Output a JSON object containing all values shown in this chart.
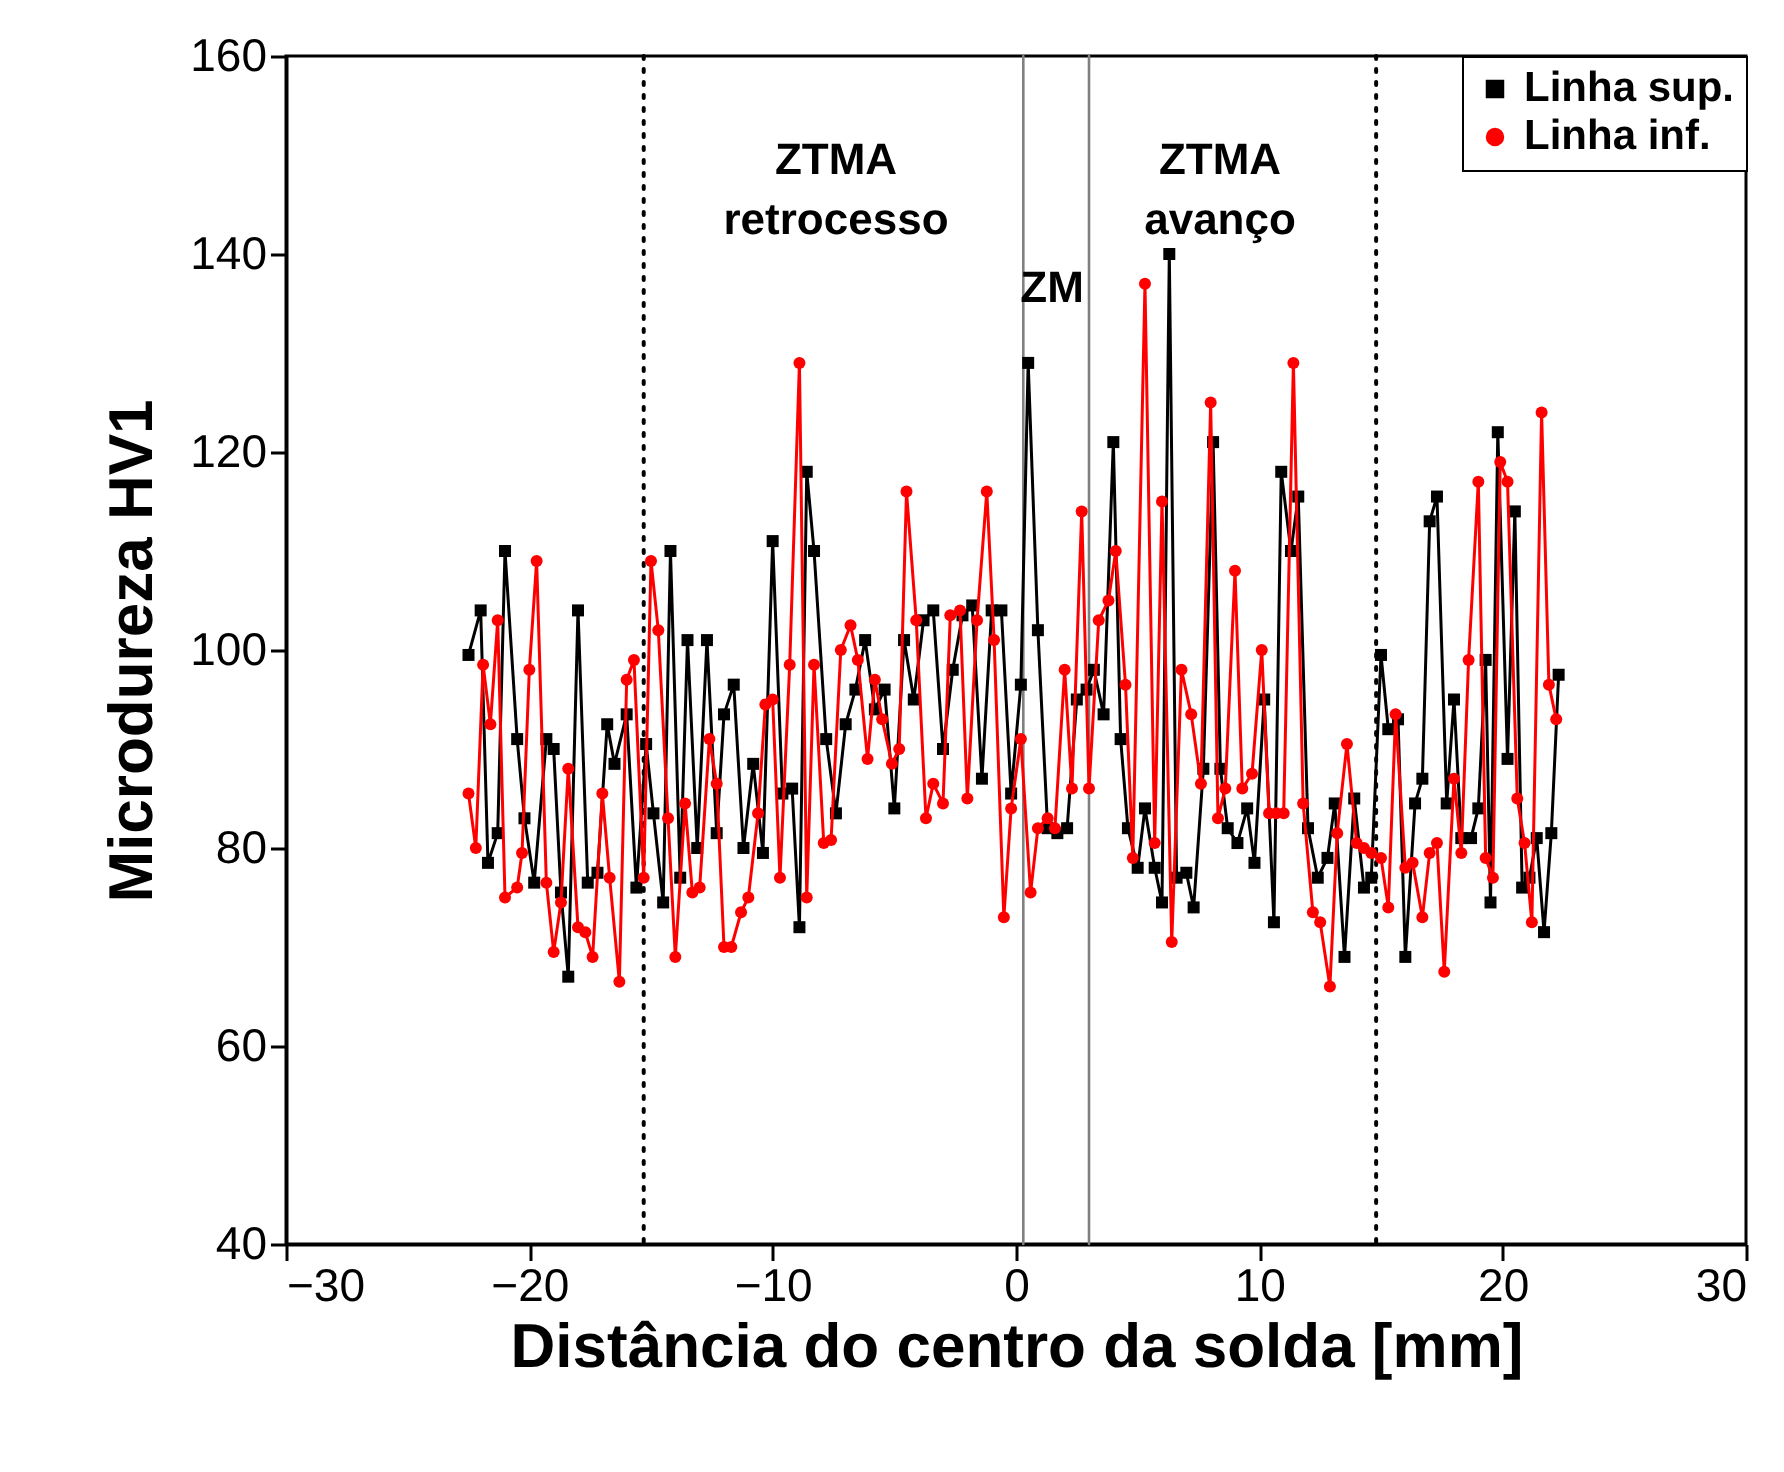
{
  "chart_data": {
    "type": "line",
    "xlabel": "Distância do centro da solda [mm]",
    "ylabel": "Microdureza HV1",
    "xlim": [
      -30,
      30
    ],
    "xticks": [
      -30,
      -20,
      -10,
      0,
      10,
      20,
      30
    ],
    "ylim": [
      40,
      160
    ],
    "yticks": [
      40,
      60,
      80,
      100,
      120,
      140,
      160
    ],
    "grid": false,
    "legend": "top right",
    "line_style": "solid",
    "ref_lines": [
      {
        "axis": "x",
        "value": -15.3,
        "line_style": "dotted",
        "color": "#000000"
      },
      {
        "axis": "x",
        "value": 14.8,
        "line_style": "dotted",
        "color": "#000000"
      },
      {
        "axis": "x",
        "value": 0.3,
        "line_style": "solid",
        "color": "#808080"
      },
      {
        "axis": "x",
        "value": 3.0,
        "line_style": "solid",
        "color": "#808080"
      }
    ],
    "annotations": [
      "ZTMA\nretrocesso",
      "ZM",
      "ZTMA\navanço"
    ],
    "series": [
      {
        "name": "Linha sup.",
        "color": "#000000",
        "marker": "square",
        "x": [
          -22.5,
          -22,
          -21.7,
          -21.3,
          -21,
          -20.5,
          -20.2,
          -19.8,
          -19.3,
          -19,
          -18.7,
          -18.4,
          -18,
          -17.6,
          -17.2,
          -16.8,
          -16.5,
          -16,
          -15.6,
          -15.2,
          -14.9,
          -14.5,
          -14.2,
          -13.8,
          -13.5,
          -13.1,
          -12.7,
          -12.3,
          -12,
          -11.6,
          -11.2,
          -10.8,
          -10.4,
          -10,
          -9.6,
          -9.2,
          -8.9,
          -8.6,
          -8.3,
          -7.8,
          -7.4,
          -7,
          -6.6,
          -6.2,
          -5.8,
          -5.4,
          -5,
          -4.6,
          -4.2,
          -3.8,
          -3.4,
          -3,
          -2.6,
          -2.2,
          -1.8,
          -1.4,
          -1,
          -0.6,
          -0.2,
          0.2,
          0.5,
          0.9,
          1.3,
          1.7,
          2.1,
          2.5,
          2.9,
          3.2,
          3.6,
          4,
          4.3,
          4.6,
          5,
          5.3,
          5.7,
          6,
          6.3,
          6.6,
          7,
          7.3,
          7.7,
          8.1,
          8.4,
          8.7,
          9.1,
          9.5,
          9.8,
          10.2,
          10.6,
          10.9,
          11.3,
          11.6,
          12,
          12.4,
          12.8,
          13.1,
          13.5,
          13.9,
          14.3,
          14.6,
          15,
          15.3,
          15.7,
          16,
          16.4,
          16.7,
          17,
          17.3,
          17.7,
          18,
          18.3,
          18.7,
          19,
          19.3,
          19.5,
          19.8,
          20.2,
          20.5,
          20.8,
          21.1,
          21.4,
          21.7,
          22,
          22.3
        ],
        "values": [
          99.5,
          104,
          78.5,
          81.5,
          110,
          91,
          83,
          76.5,
          91,
          90,
          75.5,
          67,
          104,
          76.5,
          77.5,
          92.5,
          88.5,
          93.5,
          76,
          90.5,
          83.5,
          74.5,
          110,
          77,
          101,
          80,
          101,
          81.5,
          93.5,
          96.5,
          80,
          88.5,
          79.5,
          111,
          85.5,
          86,
          72,
          118,
          110,
          91,
          83.5,
          92.5,
          96,
          101,
          94,
          96,
          84,
          101,
          95,
          103,
          104,
          90,
          98,
          103.5,
          104.5,
          87,
          104,
          104,
          85.5,
          96.5,
          129,
          102,
          82,
          81.5,
          82,
          95,
          96,
          98,
          93.5,
          121,
          91,
          82,
          78,
          84,
          78,
          74.5,
          140,
          77,
          77.5,
          74,
          88,
          121,
          88,
          82,
          80.5,
          84,
          78.5,
          95,
          72.5,
          118,
          110,
          115.5,
          82,
          77,
          79,
          84.5,
          69,
          85,
          76,
          77,
          99.5,
          92,
          93,
          69,
          84.5,
          87,
          113,
          115.5,
          84.5,
          95,
          81,
          81,
          84,
          99,
          74.5,
          122,
          89,
          114,
          76,
          77,
          81,
          71.5,
          81.5,
          97.5
        ]
      },
      {
        "name": "Linha inf.",
        "color": "#ff0000",
        "marker": "circle",
        "x": [
          -22.5,
          -22.2,
          -21.9,
          -21.6,
          -21.3,
          -21,
          -20.5,
          -20.3,
          -20,
          -19.7,
          -19.3,
          -19,
          -18.7,
          -18.4,
          -18,
          -17.7,
          -17.4,
          -17,
          -16.7,
          -16.3,
          -16,
          -15.7,
          -15.3,
          -15,
          -14.7,
          -14.3,
          -14,
          -13.6,
          -13.3,
          -13,
          -12.6,
          -12.3,
          -12,
          -11.7,
          -11.3,
          -11,
          -10.6,
          -10.3,
          -10,
          -9.7,
          -9.3,
          -8.9,
          -8.6,
          -8.3,
          -7.9,
          -7.6,
          -7.2,
          -6.8,
          -6.5,
          -6.1,
          -5.8,
          -5.5,
          -5.1,
          -4.8,
          -4.5,
          -4.1,
          -3.7,
          -3.4,
          -3,
          -2.7,
          -2.3,
          -2,
          -1.6,
          -1.2,
          -0.9,
          -0.5,
          -0.2,
          0.2,
          0.6,
          0.9,
          1.3,
          1.6,
          2,
          2.3,
          2.7,
          3,
          3.4,
          3.8,
          4.1,
          4.5,
          4.8,
          5.3,
          5.7,
          6,
          6.4,
          6.8,
          7.2,
          7.6,
          8,
          8.3,
          8.6,
          9,
          9.3,
          9.7,
          10.1,
          10.4,
          10.7,
          11,
          11.4,
          11.8,
          12.2,
          12.5,
          12.9,
          13.2,
          13.6,
          14,
          14.3,
          14.6,
          15,
          15.3,
          15.6,
          16,
          16.3,
          16.7,
          17,
          17.3,
          17.6,
          18,
          18.3,
          18.6,
          19,
          19.3,
          19.6,
          19.9,
          20.2,
          20.6,
          20.9,
          21.2,
          21.6,
          21.9,
          22.2
        ],
        "values": [
          85.5,
          80,
          98.5,
          92.5,
          103,
          75,
          76,
          79.5,
          98,
          109,
          76.5,
          69.5,
          74.5,
          88,
          72,
          71.5,
          69,
          85.5,
          77,
          66.5,
          97,
          99,
          77,
          109,
          102,
          83,
          69,
          84.5,
          75.5,
          76,
          91,
          86.5,
          70,
          70,
          73.5,
          75,
          83.5,
          94.5,
          95,
          77,
          98.5,
          129,
          75,
          98.5,
          80.5,
          80.8,
          100,
          102.5,
          99,
          89,
          97,
          93,
          88.5,
          90,
          116,
          103,
          83,
          86.5,
          84.5,
          103.5,
          104,
          85,
          103,
          116,
          101,
          73,
          84,
          91,
          75.5,
          82,
          83,
          82,
          98,
          86,
          114,
          86,
          103,
          105,
          110,
          96.5,
          79,
          137,
          80.5,
          115,
          70.5,
          98,
          93.5,
          86.5,
          125,
          83,
          86,
          108,
          86,
          87.5,
          100,
          83.5,
          83.5,
          83.5,
          129,
          84.5,
          73.5,
          72.5,
          66,
          81.5,
          90.5,
          80.5,
          80,
          79.5,
          79,
          74,
          93.5,
          78,
          78.5,
          73,
          79.5,
          80.5,
          67.5,
          87,
          79.5,
          99,
          117,
          79,
          77,
          119,
          117,
          85,
          80.5,
          72.5,
          124,
          96.5,
          93
        ]
      }
    ]
  }
}
